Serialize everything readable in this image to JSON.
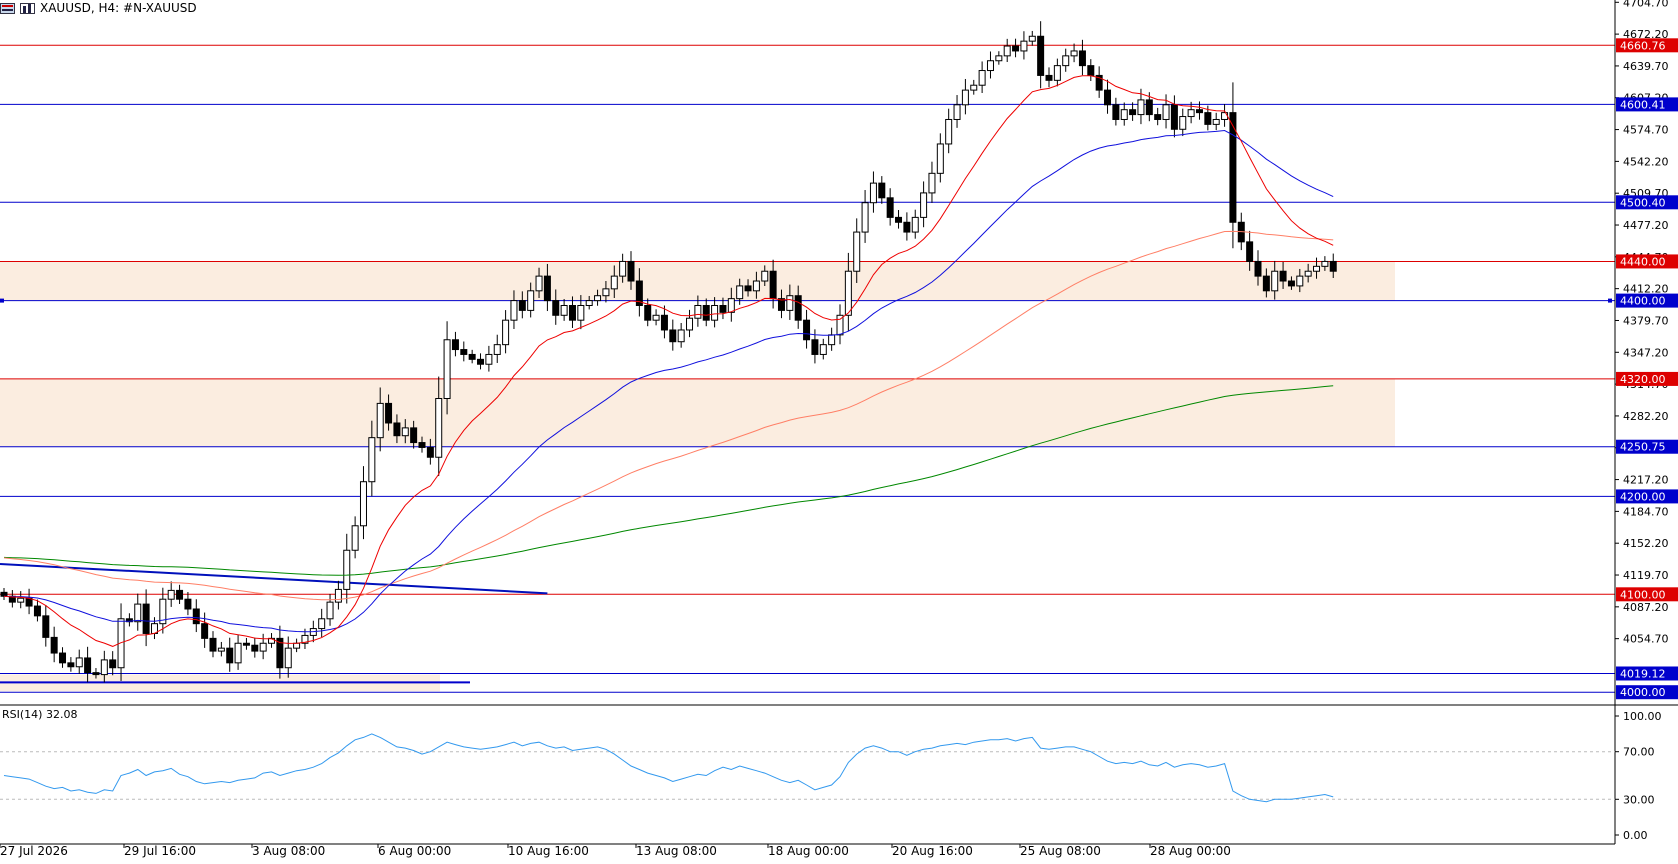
{
  "header": {
    "symbol": "XAUUSD",
    "timeframe": "H4:",
    "instrument": "#N-XAUUSD",
    "menu_icon": "chart-list-icon",
    "window_icon": "chart-window-icon"
  },
  "indicator": {
    "label": "RSI(14) 32.08",
    "levels": [
      70,
      30
    ],
    "axis_ticks": [
      "100.00",
      "70.00",
      "30.00",
      "0.00"
    ]
  },
  "price_axis": {
    "ticks": [
      "4672.20",
      "4639.70",
      "4574.70",
      "4542.20",
      "4477.20",
      "4412.20",
      "4379.70",
      "4347.20",
      "4282.20",
      "4217.20",
      "4184.70",
      "4152.20",
      "4119.70",
      "4087.20",
      "4054.70"
    ],
    "partial_ticks": [
      "4704.70",
      "4607.20",
      "4509.70",
      "4444.70",
      "4314.70",
      "4249.70"
    ]
  },
  "time_axis": [
    "27 Jul 2026",
    "29 Jul 16:00",
    "3 Aug 08:00",
    "6 Aug 00:00",
    "10 Aug 16:00",
    "13 Aug 08:00",
    "18 Aug 00:00",
    "20 Aug 16:00",
    "25 Aug 08:00",
    "28 Aug 00:00"
  ],
  "colors": {
    "support": "#0000cc",
    "resistance": "#dd0000",
    "ema_fast": "#ee0000",
    "ema_mid": "#1010dd",
    "ema_slow": "#ff7f66",
    "ema_long": "#008800",
    "rsi": "#3399ee",
    "zone": "#fbede0"
  },
  "chart_data": {
    "type": "candlestick",
    "symbol": "XAUUSD",
    "timeframe": "H4",
    "ylim": [
      3990,
      4705
    ],
    "horizontal_levels": [
      {
        "value": "4660.76",
        "kind": "resistance"
      },
      {
        "value": "4600.41",
        "kind": "support"
      },
      {
        "value": "4500.40",
        "kind": "support"
      },
      {
        "value": "4440.00",
        "kind": "resistance"
      },
      {
        "value": "4400.00",
        "kind": "support"
      },
      {
        "value": "4320.00",
        "kind": "resistance"
      },
      {
        "value": "4250.75",
        "kind": "support"
      },
      {
        "value": "4200.00",
        "kind": "support"
      },
      {
        "value": "4100.00",
        "kind": "resistance"
      },
      {
        "value": "4019.12",
        "kind": "support"
      },
      {
        "value": "4000.00",
        "kind": "support"
      }
    ],
    "zones": [
      {
        "from": 4400,
        "to": 4440
      },
      {
        "from": 4250.75,
        "to": 4320
      }
    ],
    "trendlines": [
      {
        "from": [
          0,
          4131
        ],
        "to": [
          65,
          4101
        ]
      }
    ],
    "closes": [
      4098,
      4092,
      4096,
      4088,
      4078,
      4056,
      4040,
      4030,
      4026,
      4035,
      4020,
      4018,
      4033,
      4025,
      4075,
      4072,
      4090,
      4060,
      4070,
      4095,
      4104,
      4095,
      4085,
      4070,
      4055,
      4042,
      4045,
      4030,
      4050,
      4048,
      4042,
      4050,
      4055,
      4025,
      4045,
      4050,
      4058,
      4065,
      4075,
      4092,
      4105,
      4145,
      4170,
      4215,
      4260,
      4295,
      4275,
      4262,
      4270,
      4255,
      4250,
      4240,
      4300,
      4360,
      4350,
      4345,
      4340,
      4335,
      4345,
      4355,
      4380,
      4400,
      4390,
      4410,
      4425,
      4400,
      4385,
      4395,
      4380,
      4395,
      4400,
      4405,
      4412,
      4425,
      4440,
      4420,
      4395,
      4380,
      4385,
      4370,
      4358,
      4370,
      4382,
      4395,
      4380,
      4395,
      4388,
      4402,
      4415,
      4410,
      4420,
      4430,
      4402,
      4390,
      4405,
      4380,
      4360,
      4345,
      4355,
      4365,
      4385,
      4430,
      4470,
      4500,
      4520,
      4505,
      4485,
      4480,
      4470,
      4485,
      4510,
      4530,
      4560,
      4585,
      4600,
      4615,
      4620,
      4635,
      4645,
      4650,
      4660,
      4655,
      4665,
      4670,
      4630,
      4625,
      4640,
      4650,
      4655,
      4640,
      4630,
      4615,
      4600,
      4585,
      4595,
      4590,
      4605,
      4590,
      4585,
      4600,
      4575,
      4588,
      4595,
      4592,
      4580,
      4585,
      4592,
      4480,
      4460,
      4440,
      4425,
      4410,
      4430,
      4420,
      4415,
      4425,
      4430,
      4435,
      4440,
      4430
    ],
    "rsi": [
      50,
      49,
      48,
      47,
      44,
      41,
      39,
      40,
      37,
      38,
      36,
      35,
      38,
      37,
      50,
      52,
      55,
      50,
      53,
      54,
      56,
      51,
      49,
      45,
      43,
      44,
      45,
      44,
      46,
      47,
      48,
      52,
      53,
      50,
      52,
      54,
      55,
      57,
      60,
      65,
      69,
      75,
      80,
      82,
      85,
      82,
      78,
      74,
      73,
      71,
      68,
      70,
      74,
      78,
      76,
      74,
      73,
      72,
      73,
      74,
      76,
      78,
      75,
      77,
      78,
      75,
      73,
      74,
      71,
      72,
      73,
      74,
      72,
      68,
      63,
      58,
      55,
      52,
      50,
      48,
      45,
      47,
      49,
      51,
      50,
      54,
      57,
      55,
      58,
      56,
      54,
      52,
      49,
      46,
      44,
      46,
      42,
      38,
      40,
      42,
      49,
      61,
      68,
      73,
      75,
      73,
      70,
      70,
      67,
      70,
      72,
      73,
      75,
      76,
      77,
      76,
      78,
      79,
      80,
      80,
      81,
      79,
      81,
      82,
      73,
      72,
      73,
      74,
      74,
      72,
      70,
      66,
      62,
      60,
      61,
      60,
      62,
      59,
      58,
      61,
      57,
      59,
      60,
      59,
      57,
      58,
      60,
      37,
      33,
      30,
      29,
      28,
      30,
      30,
      30,
      31,
      32,
      33,
      34,
      32
    ]
  }
}
